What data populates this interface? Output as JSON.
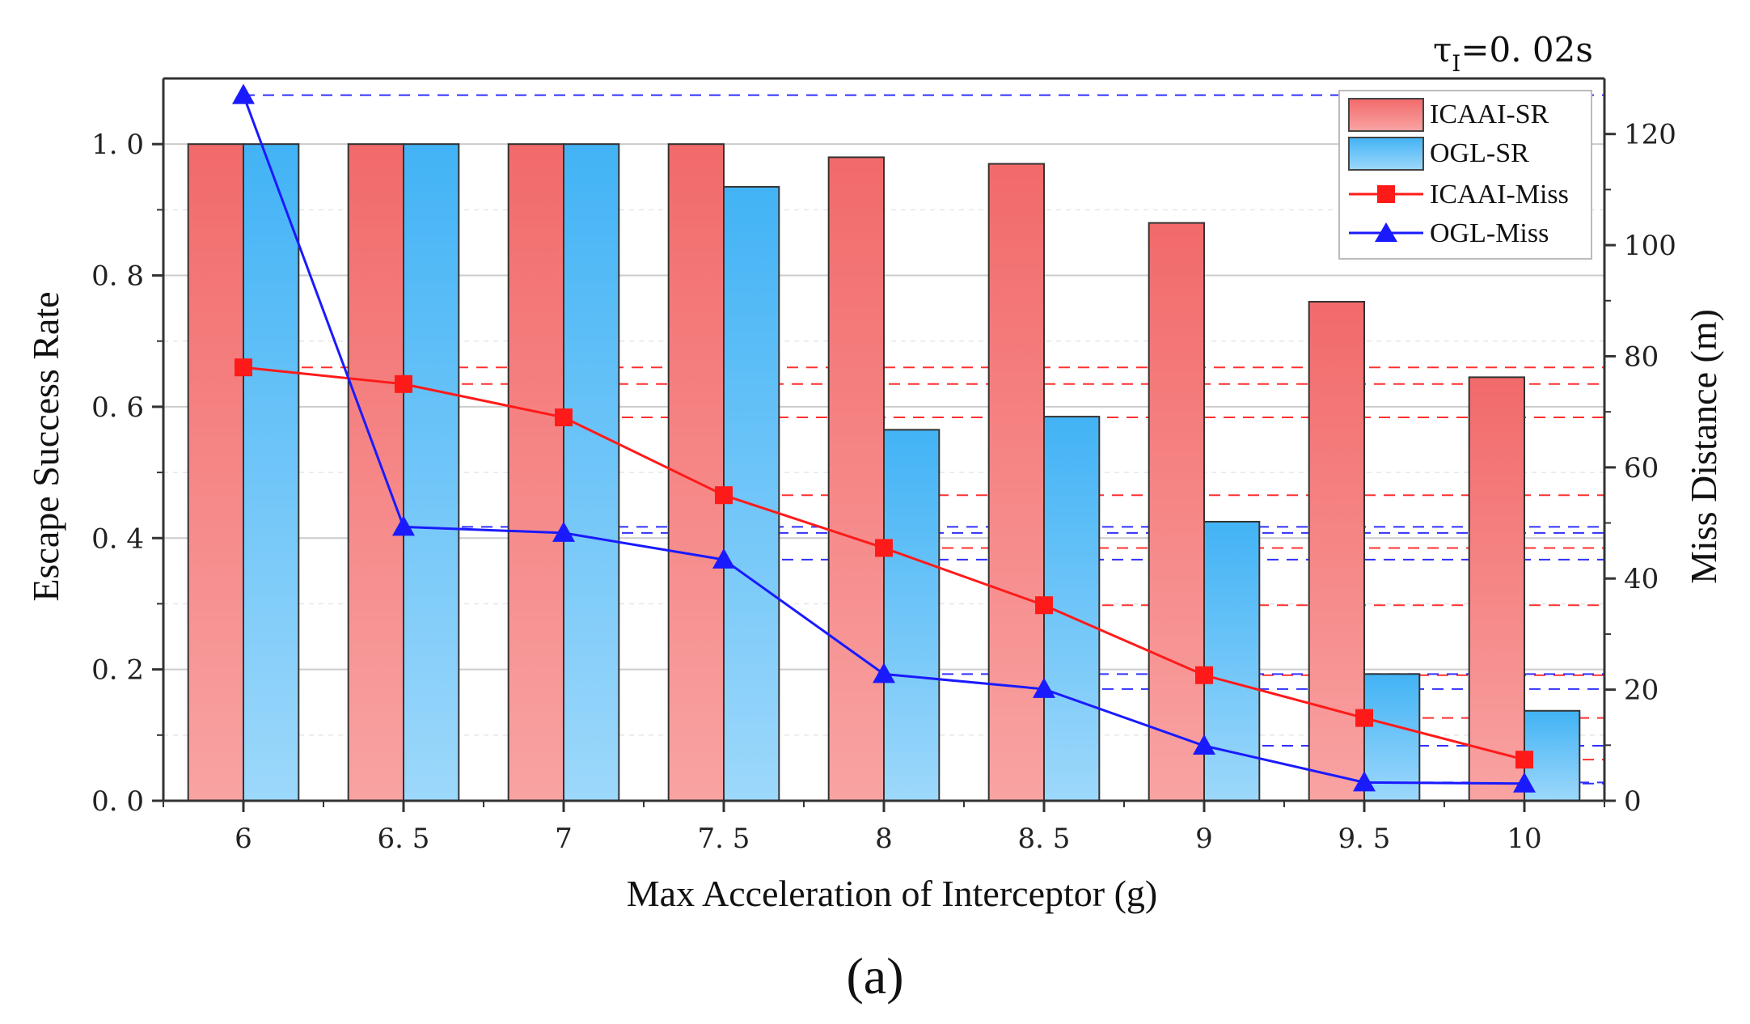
{
  "chart_data": {
    "type": "bar",
    "title": "",
    "annotation": {
      "symbol": "τ",
      "subscript": "I",
      "text": "=0. 02s"
    },
    "panel_label": "(a)",
    "xlabel": "Max Acceleration of Interceptor (g)",
    "ylabel_left": "Escape Success Rate",
    "ylabel_right": "Miss Distance (m)",
    "categories": [
      "6",
      "6. 5",
      "7",
      "7. 5",
      "8",
      "8. 5",
      "9",
      "9. 5",
      "10"
    ],
    "ylim_left": [
      0,
      1.1
    ],
    "ylim_right": [
      0,
      130
    ],
    "left_ticks": [
      "0. 0",
      "0. 2",
      "0. 4",
      "0. 6",
      "0. 8",
      "1. 0"
    ],
    "left_tick_values": [
      0,
      0.2,
      0.4,
      0.6,
      0.8,
      1.0
    ],
    "right_ticks": [
      "0",
      "20",
      "40",
      "60",
      "80",
      "100",
      "120"
    ],
    "right_tick_values": [
      0,
      20,
      40,
      60,
      80,
      100,
      120
    ],
    "bar_series": [
      {
        "name": "ICAAI-SR",
        "color": "#f26d6d",
        "values": [
          1.0,
          1.0,
          1.0,
          1.0,
          0.98,
          0.97,
          0.88,
          0.76,
          0.645
        ]
      },
      {
        "name": "OGL-SR",
        "color": "#47b6f5",
        "values": [
          1.0,
          1.0,
          1.0,
          0.935,
          0.565,
          0.585,
          0.425,
          0.193,
          0.137
        ]
      }
    ],
    "line_series": [
      {
        "name": "ICAAI-Miss",
        "color": "#ff1a1a",
        "marker": "square",
        "values": [
          78,
          75,
          69,
          55,
          45.5,
          35.2,
          22.6,
          14.9,
          7.4
        ]
      },
      {
        "name": "OGL-Miss",
        "color": "#1a1aff",
        "marker": "triangle",
        "values": [
          127,
          49.3,
          48.2,
          43.4,
          22.8,
          20.1,
          9.9,
          3.3,
          3.1
        ]
      }
    ],
    "legend_position": "top-right",
    "grid": true
  }
}
